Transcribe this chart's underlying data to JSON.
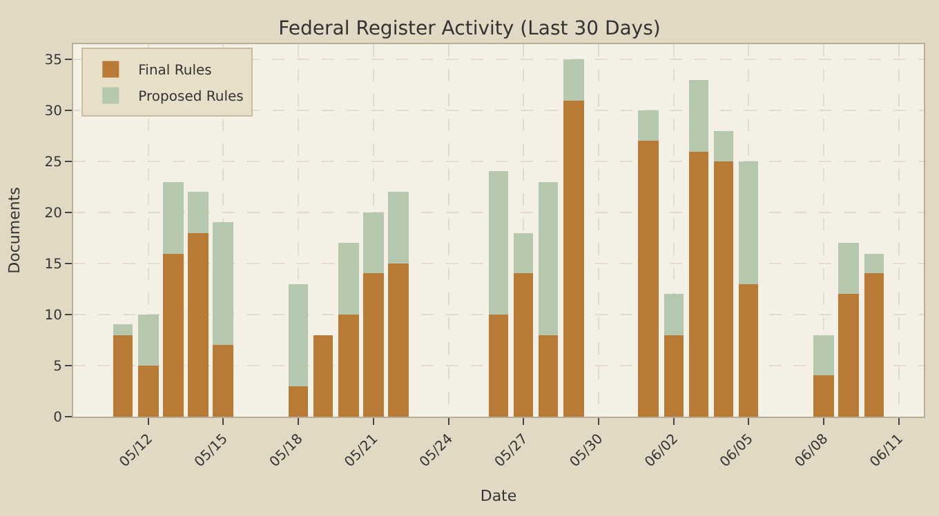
{
  "chart_data": {
    "type": "bar",
    "title": "Federal Register Activity (Last 30 Days)",
    "xlabel": "Date",
    "ylabel": "Documents",
    "x": [
      "--05-11",
      "--05-12",
      "--05-13",
      "--05-14",
      "--05-15",
      "--05-18",
      "--05-19",
      "--05-20",
      "--05-21",
      "--05-22",
      "--05-26",
      "--05-27",
      "--05-28",
      "--05-29",
      "--06-01",
      "--06-02",
      "--06-03",
      "--06-04",
      "--06-05",
      "--06-08",
      "--06-09",
      "--06-10"
    ],
    "stacked": true,
    "series": [
      {
        "name": "Final Rules",
        "color": "#b87a35",
        "values": [
          8,
          5,
          16,
          18,
          7,
          3,
          8,
          10,
          14,
          15,
          10,
          14,
          8,
          31,
          27,
          8,
          26,
          25,
          13,
          4,
          12,
          14
        ]
      },
      {
        "name": "Proposed Rules",
        "color": "#b5c8ad",
        "values": [
          1,
          5,
          7,
          4,
          12,
          10,
          0,
          7,
          6,
          7,
          14,
          4,
          15,
          4,
          3,
          4,
          7,
          3,
          12,
          4,
          5,
          2
        ]
      }
    ],
    "xlim": [
      "--05-09",
      "--06-12"
    ],
    "xticks": [
      {
        "value": "--05-12",
        "label": "05/12"
      },
      {
        "value": "--05-15",
        "label": "05/15"
      },
      {
        "value": "--05-18",
        "label": "05/18"
      },
      {
        "value": "--05-21",
        "label": "05/21"
      },
      {
        "value": "--05-24",
        "label": "05/24"
      },
      {
        "value": "--05-27",
        "label": "05/27"
      },
      {
        "value": "--05-30",
        "label": "05/30"
      },
      {
        "value": "--06-02",
        "label": "06/02"
      },
      {
        "value": "--06-05",
        "label": "06/05"
      },
      {
        "value": "--06-08",
        "label": "06/08"
      },
      {
        "value": "--06-11",
        "label": "06/11"
      }
    ],
    "ylim": [
      0,
      36.5
    ],
    "yticks": [
      0,
      5,
      10,
      15,
      20,
      25,
      30,
      35
    ],
    "grid": true,
    "legend": "top left"
  }
}
